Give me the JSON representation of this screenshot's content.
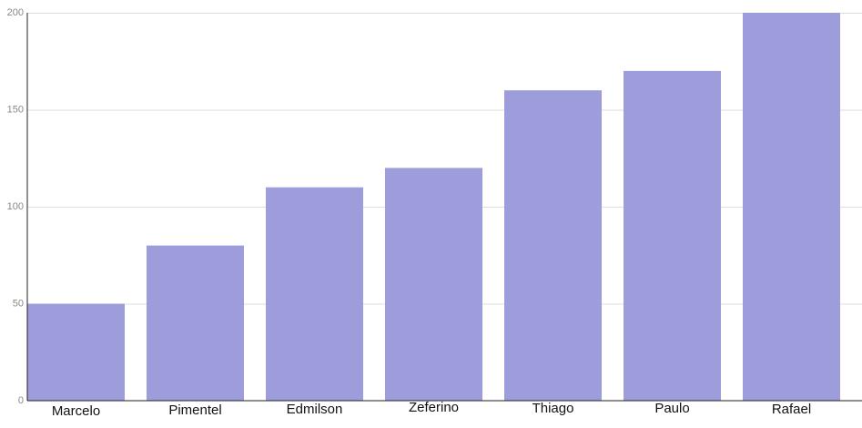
{
  "chart_data": {
    "type": "bar",
    "title": "",
    "xlabel": "",
    "ylabel": "",
    "categories": [
      "Marcelo",
      "Pimentel",
      "Edmilson",
      "Zeferino",
      "Thiago",
      "Paulo",
      "Rafael"
    ],
    "values": [
      50,
      80,
      110,
      120,
      160,
      170,
      200
    ],
    "ylim": [
      0,
      200
    ],
    "yticks": [
      0,
      50,
      100,
      150,
      200
    ],
    "grid": true,
    "legend": "none",
    "colors": {
      "bar": "#9d9ddb"
    }
  }
}
